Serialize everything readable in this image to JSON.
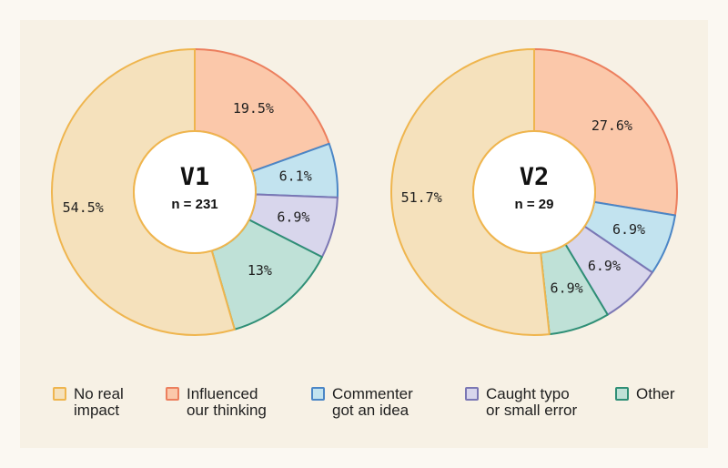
{
  "chart_data": [
    {
      "type": "pie",
      "title": "V1",
      "subtitle": "n = 231",
      "categories": [
        "Influenced our thinking",
        "Commenter got an idea",
        "Caught typo or small error",
        "Other",
        "No real impact"
      ],
      "values": [
        19.5,
        6.1,
        6.9,
        13,
        54.5
      ],
      "labels": [
        "19.5%",
        "6.1%",
        "6.9%",
        "13%",
        "54.5%"
      ]
    },
    {
      "type": "pie",
      "title": "V2",
      "subtitle": "n = 29",
      "categories": [
        "Influenced our thinking",
        "Commenter got an idea",
        "Caught typo or small error",
        "Other",
        "No real impact"
      ],
      "values": [
        27.6,
        6.9,
        6.9,
        6.9,
        51.7
      ],
      "labels": [
        "27.6%",
        "6.9%",
        "6.9%",
        "6.9%",
        "51.7%"
      ]
    }
  ],
  "colors": {
    "No real impact": {
      "fill": "#f5e1bc",
      "stroke": "#efb54e"
    },
    "Influenced our thinking": {
      "fill": "#fbc8aa",
      "stroke": "#ec7f5e"
    },
    "Commenter got an idea": {
      "fill": "#c2e3ef",
      "stroke": "#4b86c6"
    },
    "Caught typo or small error": {
      "fill": "#d8d6ec",
      "stroke": "#7b77b4"
    },
    "Other": {
      "fill": "#bfe1d7",
      "stroke": "#2f8f76"
    }
  },
  "legend": [
    {
      "key": "No real impact",
      "label": "No real\nimpact"
    },
    {
      "key": "Influenced our thinking",
      "label": "Influenced\nour thinking"
    },
    {
      "key": "Commenter got an idea",
      "label": "Commenter\ngot an idea"
    },
    {
      "key": "Caught typo or small error",
      "label": "Caught typo\nor small error"
    },
    {
      "key": "Other",
      "label": "Other"
    }
  ]
}
